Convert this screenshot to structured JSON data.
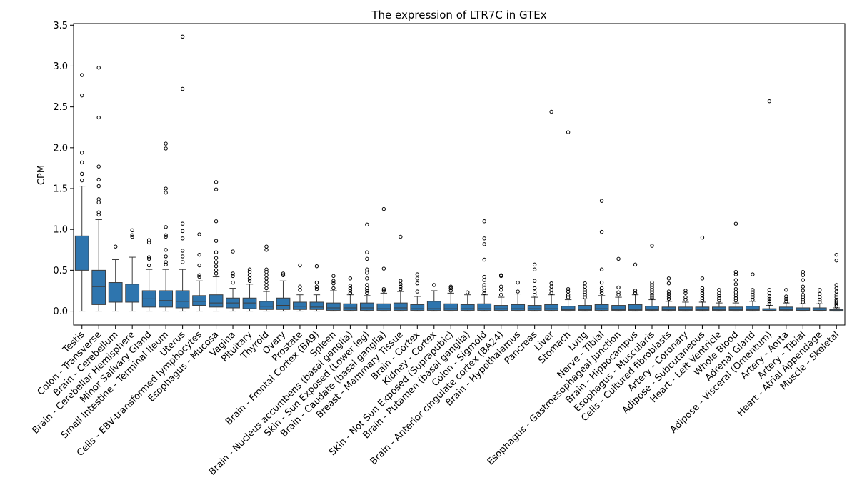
{
  "chart_data": {
    "type": "box",
    "title": "The expression of LTR7C in GTEx",
    "xlabel": "",
    "ylabel": "CPM",
    "ylim": [
      -0.17,
      3.52
    ],
    "yticks": [
      0.0,
      0.5,
      1.0,
      1.5,
      2.0,
      2.5,
      3.0,
      3.5
    ],
    "ytick_labels": [
      "0.0",
      "0.5",
      "1.0",
      "1.5",
      "2.0",
      "2.5",
      "3.0",
      "3.5"
    ],
    "box_color": "#2e75ae",
    "categories": [
      "Testis",
      "Colon - Transverse",
      "Brain - Cerebellum",
      "Brain - Cerebellar Hemisphere",
      "Minor Salivary Gland",
      "Small Intestine - Terminal Ileum",
      "Uterus",
      "Cells - EBV-transformed lymphocytes",
      "Esophagus - Mucosa",
      "Vagina",
      "Pituitary",
      "Thyroid",
      "Ovary",
      "Prostate",
      "Brain - Frontal Cortex (BA9)",
      "Spleen",
      "Brain - Nucleus accumbens (basal ganglia)",
      "Skin - Sun Exposed (Lower leg)",
      "Brain - Caudate (basal ganglia)",
      "Breast - Mammary Tissue",
      "Brain - Cortex",
      "Kidney - Cortex",
      "Skin - Not Sun Exposed (Suprapubic)",
      "Brain - Putamen (basal ganglia)",
      "Colon - Sigmoid",
      "Brain - Anterior cingulate cortex (BA24)",
      "Brain - Hypothalamus",
      "Pancreas",
      "Liver",
      "Stomach",
      "Lung",
      "Nerve - Tibial",
      "Esophagus - Gastroesophageal Junction",
      "Brain - Hippocampus",
      "Esophagus - Muscularis",
      "Cells - Cultured fibroblasts",
      "Artery - Coronary",
      "Adipose - Subcutaneous",
      "Heart - Left Ventricle",
      "Whole Blood",
      "Adrenal Gland",
      "Adipose - Visceral (Omentum)",
      "Artery - Aorta",
      "Artery - Tibial",
      "Heart - Atrial Appendage",
      "Muscle - Skeletal"
    ],
    "boxes": [
      {
        "whislo": 0.0,
        "q1": 0.5,
        "med": 0.7,
        "q3": 0.92,
        "whishi": 1.53,
        "fliers": [
          1.6,
          1.68,
          1.82,
          1.94,
          2.64,
          2.89
        ]
      },
      {
        "whislo": 0.0,
        "q1": 0.08,
        "med": 0.3,
        "q3": 0.5,
        "whishi": 1.12,
        "fliers": [
          1.18,
          1.21,
          1.33,
          1.37,
          1.53,
          1.61,
          1.77,
          2.37,
          2.98
        ]
      },
      {
        "whislo": 0.0,
        "q1": 0.11,
        "med": 0.21,
        "q3": 0.35,
        "whishi": 0.63,
        "fliers": [
          0.79
        ]
      },
      {
        "whislo": 0.0,
        "q1": 0.11,
        "med": 0.21,
        "q3": 0.33,
        "whishi": 0.66,
        "fliers": [
          0.91,
          0.93,
          0.99
        ]
      },
      {
        "whislo": 0.0,
        "q1": 0.05,
        "med": 0.15,
        "q3": 0.25,
        "whishi": 0.51,
        "fliers": [
          0.56,
          0.64,
          0.66,
          0.84,
          0.87
        ]
      },
      {
        "whislo": 0.0,
        "q1": 0.05,
        "med": 0.13,
        "q3": 0.25,
        "whishi": 0.51,
        "fliers": [
          0.57,
          0.6,
          0.67,
          0.75,
          0.91,
          0.93,
          1.03,
          1.45,
          1.5,
          1.99,
          2.05
        ]
      },
      {
        "whislo": 0.0,
        "q1": 0.04,
        "med": 0.12,
        "q3": 0.25,
        "whishi": 0.51,
        "fliers": [
          0.6,
          0.67,
          0.74,
          0.89,
          0.98,
          1.07,
          2.72,
          3.36
        ]
      },
      {
        "whislo": 0.0,
        "q1": 0.07,
        "med": 0.12,
        "q3": 0.19,
        "whishi": 0.37,
        "fliers": [
          0.42,
          0.44,
          0.56,
          0.69,
          0.94
        ]
      },
      {
        "whislo": 0.0,
        "q1": 0.05,
        "med": 0.1,
        "q3": 0.2,
        "whishi": 0.42,
        "fliers": [
          0.46,
          0.5,
          0.55,
          0.6,
          0.65,
          0.72,
          0.86,
          1.1,
          1.49,
          1.58
        ]
      },
      {
        "whislo": 0.0,
        "q1": 0.04,
        "med": 0.1,
        "q3": 0.16,
        "whishi": 0.28,
        "fliers": [
          0.35,
          0.43,
          0.46,
          0.73
        ]
      },
      {
        "whislo": 0.0,
        "q1": 0.03,
        "med": 0.1,
        "q3": 0.16,
        "whishi": 0.33,
        "fliers": [
          0.37,
          0.4,
          0.44,
          0.48,
          0.51
        ]
      },
      {
        "whislo": 0.0,
        "q1": 0.02,
        "med": 0.06,
        "q3": 0.12,
        "whishi": 0.24,
        "fliers": [
          0.28,
          0.32,
          0.36,
          0.4,
          0.44,
          0.48,
          0.51,
          0.75,
          0.79
        ]
      },
      {
        "whislo": 0.0,
        "q1": 0.02,
        "med": 0.07,
        "q3": 0.16,
        "whishi": 0.37,
        "fliers": [
          0.44,
          0.46
        ]
      },
      {
        "whislo": 0.0,
        "q1": 0.02,
        "med": 0.06,
        "q3": 0.11,
        "whishi": 0.2,
        "fliers": [
          0.26,
          0.3,
          0.56
        ]
      },
      {
        "whislo": 0.0,
        "q1": 0.02,
        "med": 0.05,
        "q3": 0.11,
        "whishi": 0.2,
        "fliers": [
          0.27,
          0.3,
          0.35,
          0.55
        ]
      },
      {
        "whislo": 0.0,
        "q1": 0.01,
        "med": 0.04,
        "q3": 0.1,
        "whishi": 0.25,
        "fliers": [
          0.28,
          0.34,
          0.37,
          0.43
        ]
      },
      {
        "whislo": 0.0,
        "q1": 0.01,
        "med": 0.04,
        "q3": 0.09,
        "whishi": 0.2,
        "fliers": [
          0.22,
          0.25,
          0.28,
          0.31,
          0.4
        ]
      },
      {
        "whislo": 0.0,
        "q1": 0.01,
        "med": 0.04,
        "q3": 0.1,
        "whishi": 0.19,
        "fliers": [
          0.22,
          0.25,
          0.28,
          0.32,
          0.4,
          0.47,
          0.51,
          0.64,
          0.72,
          1.06
        ]
      },
      {
        "whislo": 0.0,
        "q1": 0.01,
        "med": 0.03,
        "q3": 0.09,
        "whishi": 0.22,
        "fliers": [
          0.25,
          0.27,
          0.52,
          1.25
        ]
      },
      {
        "whislo": 0.0,
        "q1": 0.01,
        "med": 0.04,
        "q3": 0.1,
        "whishi": 0.24,
        "fliers": [
          0.27,
          0.3,
          0.33,
          0.37,
          0.91
        ]
      },
      {
        "whislo": 0.0,
        "q1": 0.01,
        "med": 0.03,
        "q3": 0.08,
        "whishi": 0.18,
        "fliers": [
          0.24,
          0.34,
          0.4,
          0.45
        ]
      },
      {
        "whislo": 0.0,
        "q1": 0.01,
        "med": 0.03,
        "q3": 0.12,
        "whishi": 0.25,
        "fliers": [
          0.32
        ]
      },
      {
        "whislo": 0.0,
        "q1": 0.01,
        "med": 0.03,
        "q3": 0.09,
        "whishi": 0.22,
        "fliers": [
          0.25,
          0.28,
          0.3
        ]
      },
      {
        "whislo": 0.0,
        "q1": 0.01,
        "med": 0.03,
        "q3": 0.08,
        "whishi": 0.2,
        "fliers": [
          0.23
        ]
      },
      {
        "whislo": 0.0,
        "q1": 0.01,
        "med": 0.03,
        "q3": 0.09,
        "whishi": 0.2,
        "fliers": [
          0.22,
          0.25,
          0.29,
          0.32,
          0.38,
          0.42,
          0.63,
          0.82,
          0.89,
          1.1
        ]
      },
      {
        "whislo": 0.0,
        "q1": 0.01,
        "med": 0.03,
        "q3": 0.07,
        "whishi": 0.17,
        "fliers": [
          0.2,
          0.26,
          0.3,
          0.43,
          0.44
        ]
      },
      {
        "whislo": 0.0,
        "q1": 0.01,
        "med": 0.03,
        "q3": 0.08,
        "whishi": 0.21,
        "fliers": [
          0.24,
          0.35
        ]
      },
      {
        "whislo": 0.0,
        "q1": 0.01,
        "med": 0.03,
        "q3": 0.07,
        "whishi": 0.17,
        "fliers": [
          0.2,
          0.23,
          0.28,
          0.37,
          0.51,
          0.57
        ]
      },
      {
        "whislo": 0.0,
        "q1": 0.01,
        "med": 0.03,
        "q3": 0.08,
        "whishi": 0.2,
        "fliers": [
          0.22,
          0.26,
          0.3,
          0.34,
          2.44
        ]
      },
      {
        "whislo": 0.0,
        "q1": 0.01,
        "med": 0.02,
        "q3": 0.06,
        "whishi": 0.14,
        "fliers": [
          0.17,
          0.2,
          0.24,
          0.27,
          2.19
        ]
      },
      {
        "whislo": 0.0,
        "q1": 0.01,
        "med": 0.02,
        "q3": 0.07,
        "whishi": 0.15,
        "fliers": [
          0.17,
          0.2,
          0.23,
          0.26,
          0.3,
          0.34
        ]
      },
      {
        "whislo": 0.0,
        "q1": 0.01,
        "med": 0.03,
        "q3": 0.08,
        "whishi": 0.19,
        "fliers": [
          0.22,
          0.25,
          0.28,
          0.35,
          0.51,
          0.97,
          1.35
        ]
      },
      {
        "whislo": 0.0,
        "q1": 0.01,
        "med": 0.02,
        "q3": 0.07,
        "whishi": 0.17,
        "fliers": [
          0.2,
          0.23,
          0.29,
          0.64
        ]
      },
      {
        "whislo": 0.0,
        "q1": 0.01,
        "med": 0.02,
        "q3": 0.08,
        "whishi": 0.2,
        "fliers": [
          0.22,
          0.25,
          0.57
        ]
      },
      {
        "whislo": 0.0,
        "q1": 0.01,
        "med": 0.02,
        "q3": 0.06,
        "whishi": 0.14,
        "fliers": [
          0.16,
          0.18,
          0.2,
          0.23,
          0.26,
          0.29,
          0.32,
          0.35,
          0.8
        ]
      },
      {
        "whislo": 0.0,
        "q1": 0.01,
        "med": 0.02,
        "q3": 0.05,
        "whishi": 0.12,
        "fliers": [
          0.15,
          0.18,
          0.21,
          0.24,
          0.34,
          0.4
        ]
      },
      {
        "whislo": 0.0,
        "q1": 0.01,
        "med": 0.02,
        "q3": 0.05,
        "whishi": 0.11,
        "fliers": [
          0.14,
          0.17,
          0.22,
          0.25
        ]
      },
      {
        "whislo": 0.0,
        "q1": 0.01,
        "med": 0.02,
        "q3": 0.05,
        "whishi": 0.11,
        "fliers": [
          0.13,
          0.16,
          0.19,
          0.22,
          0.25,
          0.28,
          0.4,
          0.9
        ]
      },
      {
        "whislo": 0.0,
        "q1": 0.01,
        "med": 0.02,
        "q3": 0.05,
        "whishi": 0.1,
        "fliers": [
          0.13,
          0.16,
          0.19,
          0.22,
          0.26
        ]
      },
      {
        "whislo": 0.0,
        "q1": 0.01,
        "med": 0.02,
        "q3": 0.05,
        "whishi": 0.1,
        "fliers": [
          0.13,
          0.16,
          0.19,
          0.23,
          0.27,
          0.33,
          0.38,
          0.45,
          0.48,
          1.07
        ]
      },
      {
        "whislo": 0.0,
        "q1": 0.01,
        "med": 0.02,
        "q3": 0.06,
        "whishi": 0.12,
        "fliers": [
          0.14,
          0.17,
          0.2,
          0.23,
          0.26,
          0.45
        ]
      },
      {
        "whislo": 0.0,
        "q1": 0.01,
        "med": 0.01,
        "q3": 0.03,
        "whishi": 0.07,
        "fliers": [
          0.09,
          0.12,
          0.15,
          0.18,
          0.22,
          0.26,
          2.57
        ]
      },
      {
        "whislo": 0.0,
        "q1": 0.01,
        "med": 0.02,
        "q3": 0.05,
        "whishi": 0.1,
        "fliers": [
          0.12,
          0.15,
          0.18,
          0.26
        ]
      },
      {
        "whislo": 0.0,
        "q1": 0.01,
        "med": 0.01,
        "q3": 0.04,
        "whishi": 0.09,
        "fliers": [
          0.11,
          0.14,
          0.17,
          0.2,
          0.25,
          0.3,
          0.38,
          0.44,
          0.48
        ]
      },
      {
        "whislo": 0.0,
        "q1": 0.01,
        "med": 0.01,
        "q3": 0.04,
        "whishi": 0.09,
        "fliers": [
          0.11,
          0.14,
          0.17,
          0.21,
          0.26
        ]
      },
      {
        "whislo": 0.0,
        "q1": 0.0,
        "med": 0.01,
        "q3": 0.02,
        "whishi": 0.04,
        "fliers": [
          0.06,
          0.08,
          0.1,
          0.12,
          0.14,
          0.17,
          0.2,
          0.24,
          0.28,
          0.32,
          0.62,
          0.69
        ]
      }
    ]
  }
}
